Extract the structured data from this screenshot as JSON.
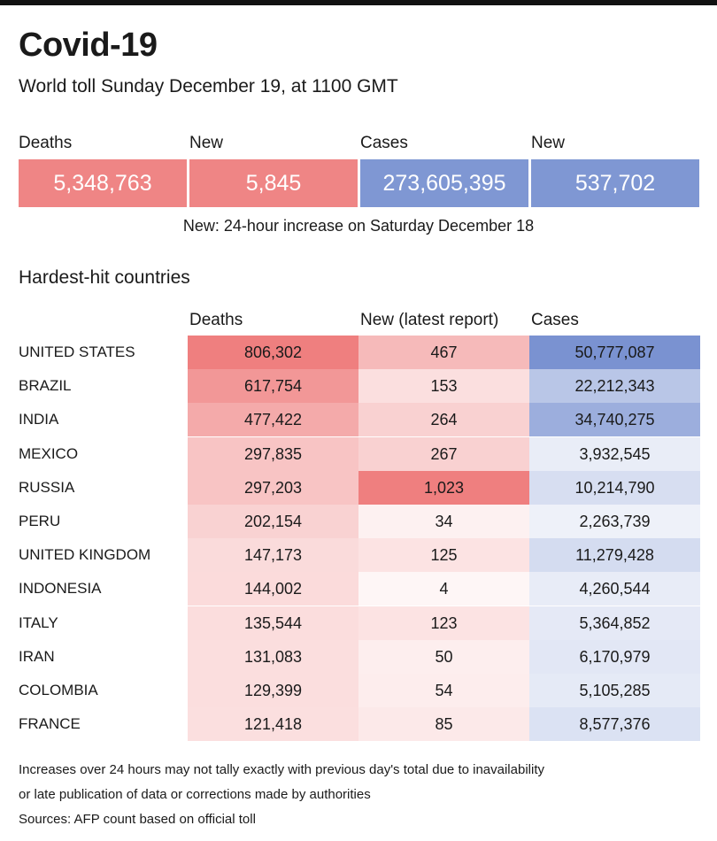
{
  "title": "Covid-19",
  "subtitle": "World toll Sunday December 19,  at 1100 GMT",
  "summary": {
    "items": [
      {
        "label": "Deaths",
        "value": "5,348,763",
        "color": "#ef8585"
      },
      {
        "label": "New",
        "value": "5,845",
        "color": "#ef8585"
      },
      {
        "label": "Cases",
        "value": "273,605,395",
        "color": "#7f97d3"
      },
      {
        "label": "New",
        "value": "537,702",
        "color": "#7f97d3"
      }
    ],
    "note": "New: 24-hour increase on Saturday December 18"
  },
  "section_title": "Hardest-hit countries",
  "colors": {
    "deaths_scale": "#ef7f7f",
    "cases_scale": "#7a92d1",
    "white": "#ffffff"
  },
  "chart_data": {
    "type": "table",
    "columns": [
      "Deaths",
      "New (latest report)",
      "Cases"
    ],
    "rows": [
      {
        "country": "UNITED STATES",
        "deaths": 806302,
        "new": 467,
        "cases": 50777087
      },
      {
        "country": "BRAZIL",
        "deaths": 617754,
        "new": 153,
        "cases": 22212343
      },
      {
        "country": "INDIA",
        "deaths": 477422,
        "new": 264,
        "cases": 34740275
      },
      {
        "country": "MEXICO",
        "deaths": 297835,
        "new": 267,
        "cases": 3932545
      },
      {
        "country": "RUSSIA",
        "deaths": 297203,
        "new": 1023,
        "cases": 10214790
      },
      {
        "country": "PERU",
        "deaths": 202154,
        "new": 34,
        "cases": 2263739
      },
      {
        "country": "UNITED KINGDOM",
        "deaths": 147173,
        "new": 125,
        "cases": 11279428
      },
      {
        "country": "INDONESIA",
        "deaths": 144002,
        "new": 4,
        "cases": 4260544
      },
      {
        "country": "ITALY",
        "deaths": 135544,
        "new": 123,
        "cases": 5364852
      },
      {
        "country": "IRAN",
        "deaths": 131083,
        "new": 50,
        "cases": 6170979
      },
      {
        "country": "COLOMBIA",
        "deaths": 129399,
        "new": 54,
        "cases": 5105285
      },
      {
        "country": "FRANCE",
        "deaths": 121418,
        "new": 85,
        "cases": 8577376
      }
    ]
  },
  "footnotes": [
    "Increases over 24 hours may not tally exactly with previous day's total due to inavailability",
    "or late publication of data or corrections made by authorities",
    "Sources: AFP count based on official toll"
  ]
}
